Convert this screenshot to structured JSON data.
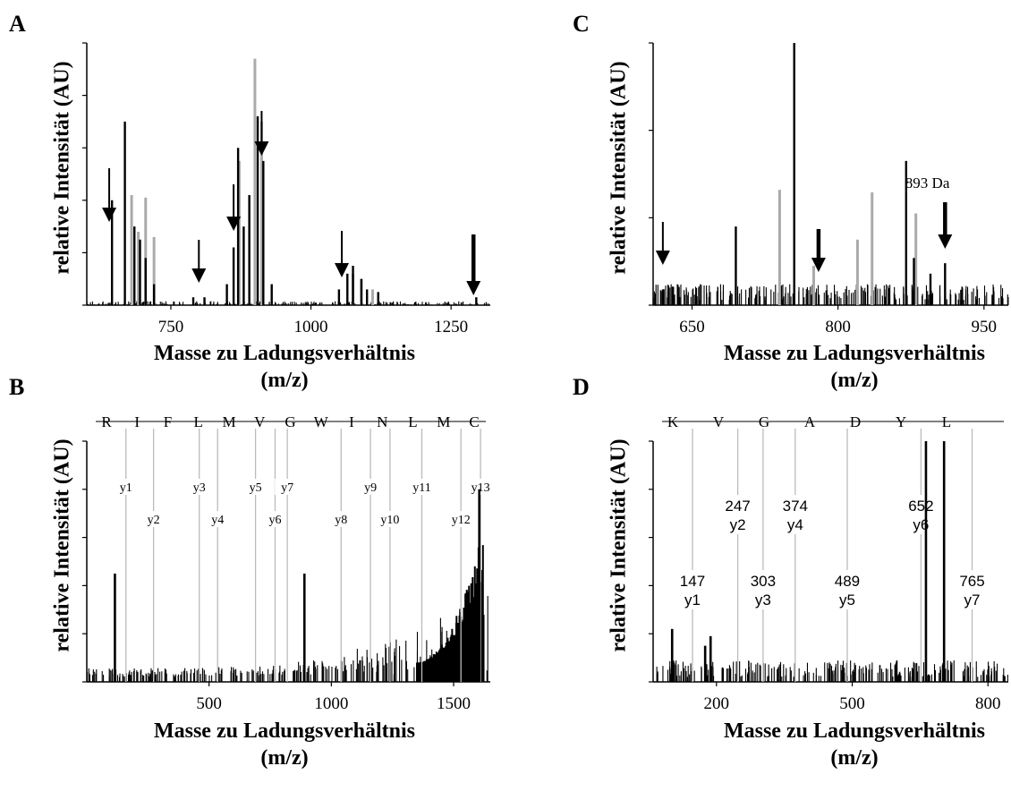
{
  "panels": {
    "A": {
      "letter": "A"
    },
    "B": {
      "letter": "B"
    },
    "C": {
      "letter": "C"
    },
    "D": {
      "letter": "D"
    }
  },
  "common": {
    "ylabel": "relative Intensität (AU)",
    "xlabel_line1": "Masse zu Ladungsverhältnis",
    "xlabel_line2": "(m/z)"
  },
  "chart_data": [
    {
      "id": "A",
      "type": "bar",
      "xlim": [
        600,
        1320
      ],
      "x_ticks": [
        750,
        1000,
        1250
      ],
      "y_ticks_count": 5,
      "black_peaks": [
        [
          645,
          40
        ],
        [
          668,
          70
        ],
        [
          685,
          30
        ],
        [
          695,
          25
        ],
        [
          705,
          18
        ],
        [
          720,
          8
        ],
        [
          790,
          3
        ],
        [
          810,
          3
        ],
        [
          850,
          8
        ],
        [
          862,
          22
        ],
        [
          870,
          60
        ],
        [
          880,
          30
        ],
        [
          890,
          42
        ],
        [
          905,
          72
        ],
        [
          915,
          55
        ],
        [
          930,
          8
        ],
        [
          1050,
          6
        ],
        [
          1065,
          12
        ],
        [
          1075,
          15
        ],
        [
          1090,
          10
        ],
        [
          1100,
          6
        ],
        [
          1120,
          5
        ],
        [
          1295,
          3
        ]
      ],
      "gray_peaks": [
        [
          680,
          42
        ],
        [
          692,
          28
        ],
        [
          705,
          41
        ],
        [
          720,
          26
        ],
        [
          872,
          55
        ],
        [
          900,
          94
        ],
        [
          912,
          70
        ],
        [
          1075,
          12
        ],
        [
          1090,
          10
        ],
        [
          1110,
          6
        ]
      ],
      "arrows": [
        {
          "x": 640,
          "heavy": false
        },
        {
          "x": 800,
          "heavy": false
        },
        {
          "x": 862,
          "heavy": false
        },
        {
          "x": 912,
          "heavy": false
        },
        {
          "x": 1055,
          "heavy": false
        },
        {
          "x": 1290,
          "heavy": true
        }
      ]
    },
    {
      "id": "B",
      "type": "bar",
      "xlim": [
        0,
        1650
      ],
      "x_ticks": [
        500,
        1000,
        1500
      ],
      "y_ticks_count": 5,
      "sequence": [
        "R",
        "I",
        "F",
        "L",
        "M",
        "V",
        "G",
        "W",
        "I",
        "N",
        "L",
        "M",
        "C"
      ],
      "fragment_labels": [
        {
          "label": "y1",
          "x": 160
        },
        {
          "label": "y2",
          "x": 273
        },
        {
          "label": "y3",
          "x": 460
        },
        {
          "label": "y4",
          "x": 535
        },
        {
          "label": "y5",
          "x": 690
        },
        {
          "label": "y6",
          "x": 770
        },
        {
          "label": "y7",
          "x": 820
        },
        {
          "label": "y8",
          "x": 1040
        },
        {
          "label": "y9",
          "x": 1160
        },
        {
          "label": "y10",
          "x": 1240
        },
        {
          "label": "y11",
          "x": 1370
        },
        {
          "label": "y12",
          "x": 1530
        },
        {
          "label": "y13",
          "x": 1610
        }
      ],
      "tall_peaks": [
        [
          115,
          45
        ],
        [
          890,
          45
        ],
        [
          1605,
          80
        ]
      ]
    },
    {
      "id": "C",
      "type": "bar",
      "xlim": [
        610,
        975
      ],
      "x_ticks": [
        650,
        800,
        950
      ],
      "y_ticks_count": 3,
      "black_peaks": [
        [
          620,
          6
        ],
        [
          695,
          30
        ],
        [
          755,
          100
        ],
        [
          870,
          55
        ],
        [
          878,
          18
        ],
        [
          895,
          12
        ],
        [
          910,
          16
        ]
      ],
      "gray_peaks": [
        [
          740,
          44
        ],
        [
          775,
          15
        ],
        [
          820,
          25
        ],
        [
          835,
          43
        ],
        [
          880,
          35
        ]
      ],
      "annotation": {
        "text": "893 Da",
        "x": 893
      },
      "arrows": [
        {
          "x": 620,
          "heavy": false
        },
        {
          "x": 780,
          "heavy": true
        },
        {
          "x": 910,
          "heavy": true
        }
      ]
    },
    {
      "id": "D",
      "type": "bar",
      "xlim": [
        60,
        845
      ],
      "x_ticks": [
        200,
        500,
        800
      ],
      "y_ticks_count": 5,
      "sequence": [
        "K",
        "V",
        "G",
        "A",
        "D",
        "Y",
        "L"
      ],
      "fragment_labels": [
        {
          "mass": "147",
          "label": "y1",
          "x": 147
        },
        {
          "mass": "247",
          "label": "y2",
          "x": 247
        },
        {
          "mass": "303",
          "label": "y3",
          "x": 303
        },
        {
          "mass": "374",
          "label": "y4",
          "x": 374
        },
        {
          "mass": "489",
          "label": "y5",
          "x": 489
        },
        {
          "mass": "652",
          "label": "y6",
          "x": 652
        },
        {
          "mass": "765",
          "label": "y7",
          "x": 765
        }
      ],
      "tall_peaks": [
        [
          663,
          100
        ],
        [
          703,
          100
        ],
        [
          102,
          22
        ],
        [
          175,
          15
        ],
        [
          187,
          19
        ]
      ]
    }
  ]
}
